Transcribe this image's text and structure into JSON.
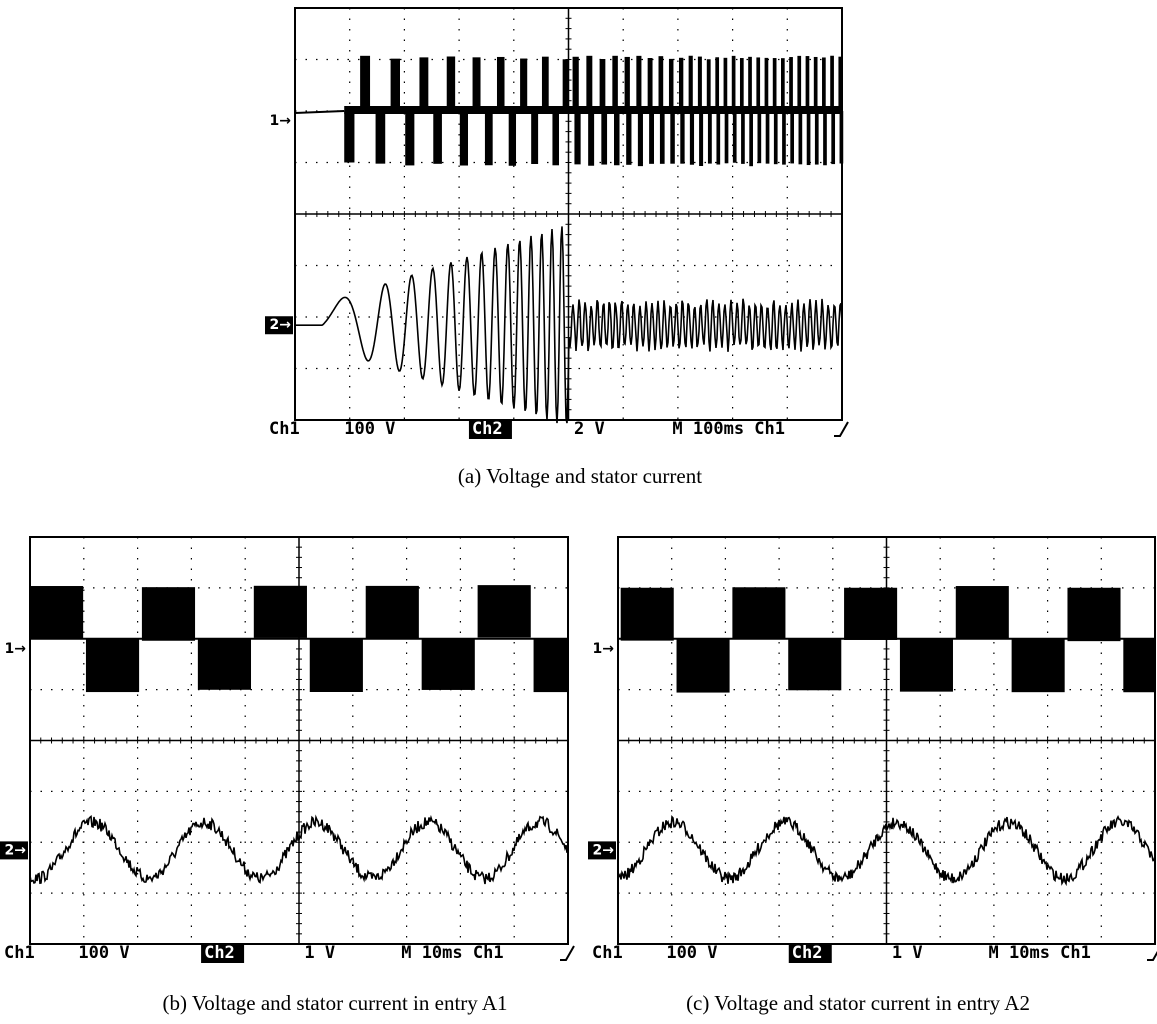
{
  "panels": [
    {
      "ch1_marker": "1→",
      "ch2_marker": "2→",
      "readout": {
        "ch1": "Ch1",
        "ch1_scale": "100 V",
        "ch2": "Ch2",
        "ch2_scale": "2 V",
        "timebase": "M 100ms Ch1"
      },
      "caption": "(a) Voltage and stator current"
    },
    {
      "ch1_marker": "1→",
      "ch2_marker": "2→",
      "readout": {
        "ch1": "Ch1",
        "ch1_scale": "100 V",
        "ch2": "Ch2",
        "ch2_scale": "1 V",
        "timebase": "M 10ms Ch1"
      },
      "caption": "(b) Voltage and stator current in entry A1"
    },
    {
      "ch1_marker": "1→",
      "ch2_marker": "2→",
      "readout": {
        "ch1": "Ch1",
        "ch1_scale": "100 V",
        "ch2": "Ch2",
        "ch2_scale": "1 V",
        "timebase": "M 10ms Ch1"
      },
      "caption": "(c) Voltage and stator current in entry A2"
    }
  ]
}
